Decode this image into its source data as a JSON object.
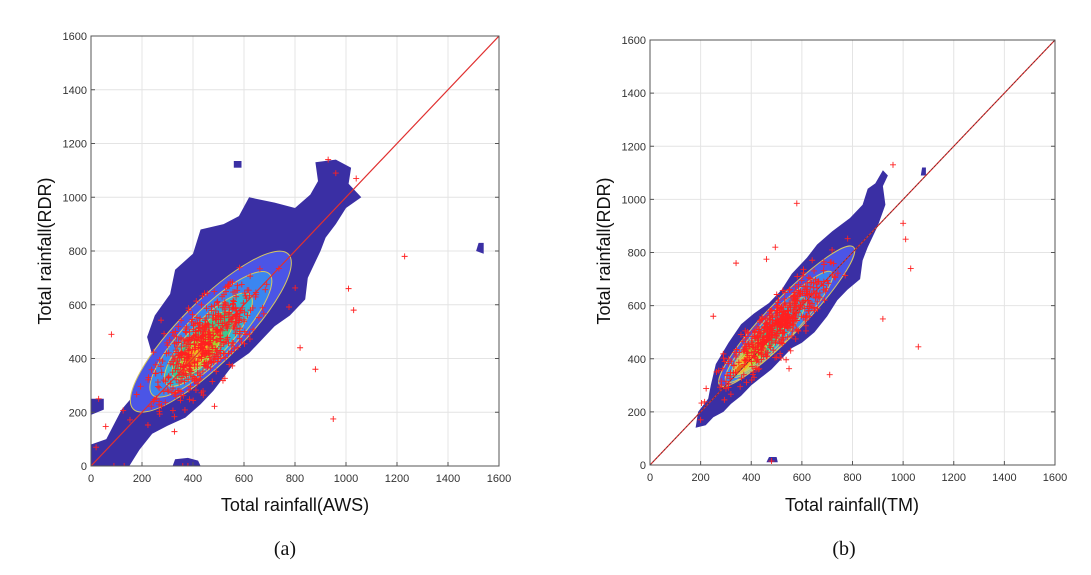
{
  "chart_data": [
    {
      "type": "scatter",
      "panel_label": "(a)",
      "xlabel": "Total rainfall(AWS)",
      "ylabel": "Total rainfall(RDR)",
      "xlim": [
        0,
        1600
      ],
      "ylim": [
        0,
        1600
      ],
      "xticks": [
        "0",
        "200",
        "400",
        "600",
        "800",
        "1000",
        "1200",
        "1400",
        "1600"
      ],
      "yticks": [
        "0",
        "200",
        "400",
        "600",
        "800",
        "1000",
        "1200",
        "1400",
        "1600"
      ],
      "grid": true,
      "reference_line": "y = x",
      "colors": {
        "background_density": "#3a2fa4",
        "level1": "#4b55e6",
        "level2": "#3b86f0",
        "level3": "#2fb4d6",
        "level4": "#3cc890",
        "level5": "#a6d22c",
        "level6": "#f2b81e",
        "level7": "#f06a10",
        "contour": "#d8c860",
        "points": "#ff2020",
        "line": "#e03030"
      },
      "density_regions": [
        {
          "level": 0,
          "polygon": [
            [
              0,
              0
            ],
            [
              0,
              80
            ],
            [
              60,
              100
            ],
            [
              120,
              210
            ],
            [
              200,
              300
            ],
            [
              250,
              380
            ],
            [
              220,
              480
            ],
            [
              250,
              560
            ],
            [
              310,
              640
            ],
            [
              330,
              730
            ],
            [
              400,
              790
            ],
            [
              430,
              880
            ],
            [
              520,
              900
            ],
            [
              580,
              930
            ],
            [
              620,
              1000
            ],
            [
              720,
              980
            ],
            [
              800,
              960
            ],
            [
              860,
              1010
            ],
            [
              890,
              1060
            ],
            [
              880,
              1130
            ],
            [
              960,
              1140
            ],
            [
              1020,
              1110
            ],
            [
              1010,
              1050
            ],
            [
              1060,
              1000
            ],
            [
              1000,
              960
            ],
            [
              960,
              900
            ],
            [
              920,
              850
            ],
            [
              900,
              800
            ],
            [
              880,
              760
            ],
            [
              850,
              700
            ],
            [
              840,
              620
            ],
            [
              780,
              560
            ],
            [
              720,
              520
            ],
            [
              680,
              480
            ],
            [
              620,
              420
            ],
            [
              560,
              380
            ],
            [
              520,
              330
            ],
            [
              480,
              280
            ],
            [
              430,
              230
            ],
            [
              370,
              180
            ],
            [
              300,
              150
            ],
            [
              240,
              120
            ],
            [
              190,
              60
            ],
            [
              150,
              0
            ]
          ]
        },
        {
          "level": 0,
          "polygon": [
            [
              0,
              190
            ],
            [
              0,
              250
            ],
            [
              50,
              250
            ],
            [
              50,
              210
            ]
          ]
        },
        {
          "level": 0,
          "polygon": [
            [
              320,
              0
            ],
            [
              330,
              25
            ],
            [
              380,
              30
            ],
            [
              420,
              20
            ],
            [
              430,
              0
            ]
          ]
        },
        {
          "level": 0,
          "polygon": [
            [
              560,
              1110
            ],
            [
              560,
              1135
            ],
            [
              590,
              1135
            ],
            [
              590,
              1110
            ]
          ]
        },
        {
          "level": 0,
          "polygon": [
            [
              1510,
              800
            ],
            [
              1520,
              830
            ],
            [
              1540,
              830
            ],
            [
              1540,
              790
            ]
          ]
        },
        {
          "level": 1,
          "center": [
            470,
            500
          ],
          "rx": 430,
          "ry": 120,
          "angle": 45
        },
        {
          "level": 2,
          "center": [
            470,
            490
          ],
          "rx": 330,
          "ry": 95,
          "angle": 46
        },
        {
          "level": 3,
          "center": [
            460,
            470
          ],
          "rx": 240,
          "ry": 75,
          "angle": 47
        },
        {
          "level": 4,
          "center": [
            440,
            450
          ],
          "rx": 170,
          "ry": 58,
          "angle": 48
        },
        {
          "level": 5,
          "center": [
            430,
            430
          ],
          "rx": 110,
          "ry": 45,
          "angle": 48
        },
        {
          "level": 6,
          "center": [
            410,
            410
          ],
          "rx": 65,
          "ry": 32,
          "angle": 50
        },
        {
          "level": 7,
          "center": [
            390,
            390
          ],
          "rx": 30,
          "ry": 18,
          "angle": 50
        }
      ],
      "outliers": [
        [
          80,
          490
        ],
        [
          1230,
          780
        ],
        [
          1030,
          580
        ],
        [
          1010,
          660
        ],
        [
          880,
          360
        ],
        [
          950,
          175
        ],
        [
          820,
          440
        ],
        [
          130,
          0
        ],
        [
          360,
          0
        ],
        [
          380,
          0
        ],
        [
          90,
          0
        ],
        [
          20,
          70
        ],
        [
          30,
          250
        ],
        [
          930,
          1140
        ],
        [
          960,
          1090
        ],
        [
          1040,
          1070
        ]
      ],
      "cluster": {
        "center": [
          450,
          460
        ],
        "spread_major": 260,
        "spread_minor": 70,
        "angle": 46,
        "count": 520
      }
    },
    {
      "type": "scatter",
      "panel_label": "(b)",
      "xlabel": "Total rainfall(TM)",
      "ylabel": "Total rainfall(RDR)",
      "xlim": [
        0,
        1600
      ],
      "ylim": [
        0,
        1600
      ],
      "xticks": [
        "0",
        "200",
        "400",
        "600",
        "800",
        "1000",
        "1200",
        "1400",
        "1600"
      ],
      "yticks": [
        "0",
        "200",
        "400",
        "600",
        "800",
        "1000",
        "1200",
        "1400",
        "1600"
      ],
      "grid": true,
      "reference_line": "y = x",
      "colors": {
        "background_density": "#3a2fa4",
        "level1": "#4b55e6",
        "level2": "#3b86f0",
        "level3": "#2fb4d6",
        "level4": "#3cc890",
        "level5": "#a6d22c",
        "level6": "#f2b81e",
        "level7": "#f06a10",
        "contour": "#d8c860",
        "points": "#ff2020",
        "line": "#e03030"
      },
      "density_regions": [
        {
          "level": 0,
          "polygon": [
            [
              180,
              140
            ],
            [
              190,
              200
            ],
            [
              230,
              250
            ],
            [
              240,
              300
            ],
            [
              260,
              380
            ],
            [
              310,
              460
            ],
            [
              360,
              530
            ],
            [
              410,
              570
            ],
            [
              470,
              610
            ],
            [
              520,
              660
            ],
            [
              560,
              720
            ],
            [
              620,
              780
            ],
            [
              660,
              830
            ],
            [
              720,
              880
            ],
            [
              790,
              930
            ],
            [
              840,
              980
            ],
            [
              860,
              1040
            ],
            [
              890,
              1060
            ],
            [
              920,
              1110
            ],
            [
              940,
              1090
            ],
            [
              920,
              1050
            ],
            [
              930,
              980
            ],
            [
              900,
              900
            ],
            [
              860,
              820
            ],
            [
              840,
              770
            ],
            [
              830,
              700
            ],
            [
              780,
              660
            ],
            [
              740,
              620
            ],
            [
              700,
              560
            ],
            [
              650,
              500
            ],
            [
              600,
              460
            ],
            [
              560,
              440
            ],
            [
              520,
              400
            ],
            [
              480,
              360
            ],
            [
              440,
              330
            ],
            [
              400,
              300
            ],
            [
              360,
              260
            ],
            [
              320,
              230
            ],
            [
              290,
              200
            ],
            [
              250,
              180
            ],
            [
              220,
              150
            ]
          ]
        },
        {
          "level": 0,
          "polygon": [
            [
              1070,
              1090
            ],
            [
              1075,
              1120
            ],
            [
              1090,
              1120
            ],
            [
              1090,
              1090
            ]
          ]
        },
        {
          "level": 0,
          "polygon": [
            [
              460,
              10
            ],
            [
              470,
              30
            ],
            [
              500,
              30
            ],
            [
              505,
              10
            ]
          ]
        },
        {
          "level": 1,
          "center": [
            540,
            560
          ],
          "rx": 380,
          "ry": 70,
          "angle": 46
        },
        {
          "level": 2,
          "center": [
            510,
            520
          ],
          "rx": 300,
          "ry": 58,
          "angle": 46
        },
        {
          "level": 3,
          "center": [
            470,
            480
          ],
          "rx": 210,
          "ry": 48,
          "angle": 47
        },
        {
          "level": 4,
          "center": [
            430,
            440
          ],
          "rx": 140,
          "ry": 38,
          "angle": 47
        },
        {
          "level": 5,
          "center": [
            400,
            410
          ],
          "rx": 90,
          "ry": 30,
          "angle": 48
        },
        {
          "level": 6,
          "center": [
            370,
            380
          ],
          "rx": 50,
          "ry": 22,
          "angle": 48
        },
        {
          "level": 7,
          "center": [
            355,
            365
          ],
          "rx": 22,
          "ry": 12,
          "angle": 48
        }
      ],
      "outliers": [
        [
          340,
          760
        ],
        [
          250,
          560
        ],
        [
          580,
          985
        ],
        [
          460,
          775
        ],
        [
          495,
          820
        ],
        [
          1060,
          445
        ],
        [
          920,
          550
        ],
        [
          710,
          340
        ],
        [
          1030,
          740
        ],
        [
          1010,
          850
        ],
        [
          1000,
          910
        ],
        [
          480,
          15
        ],
        [
          200,
          170
        ],
        [
          960,
          1130
        ]
      ],
      "cluster": {
        "center": [
          500,
          520
        ],
        "spread_major": 250,
        "spread_minor": 45,
        "angle": 46,
        "count": 520
      }
    }
  ]
}
